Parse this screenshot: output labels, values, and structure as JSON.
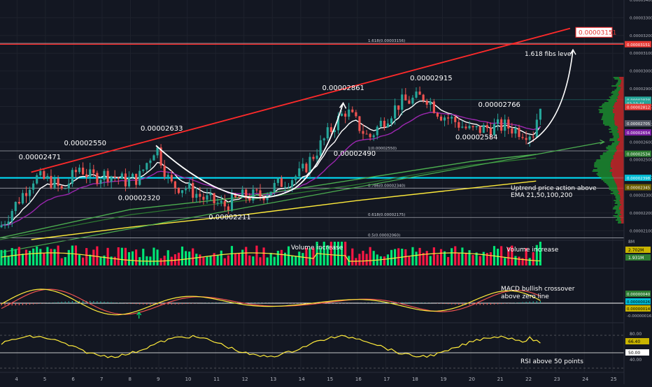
{
  "chart_data": {
    "type": "candlestick",
    "x_ticks": [
      "4",
      "5",
      "6",
      "7",
      "8",
      "9",
      "10",
      "11",
      "12",
      "13",
      "14",
      "15",
      "16",
      "17",
      "18",
      "19",
      "20",
      "21",
      "22",
      "23",
      "24",
      "25"
    ],
    "x_range": [
      3.4,
      25.4
    ],
    "y_range": [
      2.05e-05,
      3.4e-05
    ],
    "price_ticks": [
      "0.00003400",
      "0.00003300",
      "0.00003200",
      "0.00003100",
      "0.00003000",
      "0.00002900",
      "0.00002800",
      "0.00002700",
      "0.00002600",
      "0.00002500",
      "0.00002400",
      "0.00002300",
      "0.00002200",
      "0.00002100"
    ],
    "price_tick_values": [
      3.4e-05,
      3.3e-05,
      3.2e-05,
      3.1e-05,
      3e-05,
      2.9e-05,
      2.8e-05,
      2.7e-05,
      2.6e-05,
      2.5e-05,
      2.4e-05,
      2.3e-05,
      2.2e-05,
      2.1e-05
    ],
    "price_annotations": [
      {
        "text": "0.00002471",
        "x": 4.6,
        "y": 2.471e-05
      },
      {
        "text": "0.00002550",
        "x": 6.2,
        "y": 2.55e-05
      },
      {
        "text": "0.00002633",
        "x": 8.9,
        "y": 2.633e-05
      },
      {
        "text": "0.00002320",
        "x": 8.1,
        "y": 2.32e-05
      },
      {
        "text": "0.00002211",
        "x": 11.3,
        "y": 2.211e-05
      },
      {
        "text": "0.00002861",
        "x": 15.3,
        "y": 2.861e-05
      },
      {
        "text": "0.00002490",
        "x": 15.7,
        "y": 2.49e-05
      },
      {
        "text": "0.00002915",
        "x": 18.4,
        "y": 2.915e-05
      },
      {
        "text": "0.00002766",
        "x": 20.8,
        "y": 2.766e-05
      },
      {
        "text": "0.00002584",
        "x": 20.0,
        "y": 2.584e-05
      }
    ],
    "fib_levels": [
      {
        "label": "1.618(0.00003156)",
        "y": 3.156e-05
      },
      {
        "label": "1(0.00002550)",
        "y": 2.55e-05
      },
      {
        "label": "0.786(0.00002340)",
        "y": 2.34e-05
      },
      {
        "label": "0.618(0.00002175)",
        "y": 2.175e-05
      },
      {
        "label": "0.5(0.00002060)",
        "y": 2.06e-05
      }
    ],
    "target_label": "0.00003151",
    "target_value": 3.151e-05,
    "notes": {
      "fibs": "1.618 fibs level",
      "uptrend_1": "Uptrend price action above",
      "uptrend_2": "EMA 21,50,100,200",
      "volume_1": "Volume increase",
      "volume_2": "Volume increase",
      "macd_1": "MACD bullish crossover",
      "macd_2": "above zero line",
      "rsi": "RSI above 50 points"
    },
    "right_badges": [
      {
        "text": "0.00003151",
        "y": 3.151e-05,
        "color": "#e53935"
      },
      {
        "text": "0.00002838",
        "y": 2.838e-05,
        "color": "#26a69a"
      },
      {
        "text": "02:10:44",
        "y": 2.818e-05,
        "color": "#26a69a"
      },
      {
        "text": "0.00002812",
        "y": 2.797e-05,
        "color": "#e53935"
      },
      {
        "text": "0.00002705",
        "y": 2.705e-05,
        "color": "#555a66"
      },
      {
        "text": "0.00002654",
        "y": 2.654e-05,
        "color": "#7b1fa2"
      },
      {
        "text": "0.00002534",
        "y": 2.534e-05,
        "color": "#2e7d32"
      },
      {
        "text": "0.00002398",
        "y": 2.398e-05,
        "color": "#00bcd4"
      },
      {
        "text": "0.00002345",
        "y": 2.345e-05,
        "color": "#6d5f00"
      }
    ],
    "volume": {
      "label": "8M",
      "badges": [
        "2.702M",
        "1.931M"
      ]
    },
    "macd": {
      "badges": [
        "0.00000040",
        "0.00000026",
        "0.00000014",
        "-0.00000016"
      ]
    },
    "rsi": {
      "ticks": [
        "80.00",
        "40.00"
      ],
      "badges": [
        "66.40",
        "50.00"
      ]
    },
    "colors": {
      "up": "#26a69a",
      "down": "#ef5350",
      "ema21": "#ffffff",
      "ema50": "#9c27b0",
      "ema100": "#4caf50",
      "ema200": "#ffeb3b",
      "trendline": "#ff2a2a",
      "support": "#00e5ff"
    }
  }
}
